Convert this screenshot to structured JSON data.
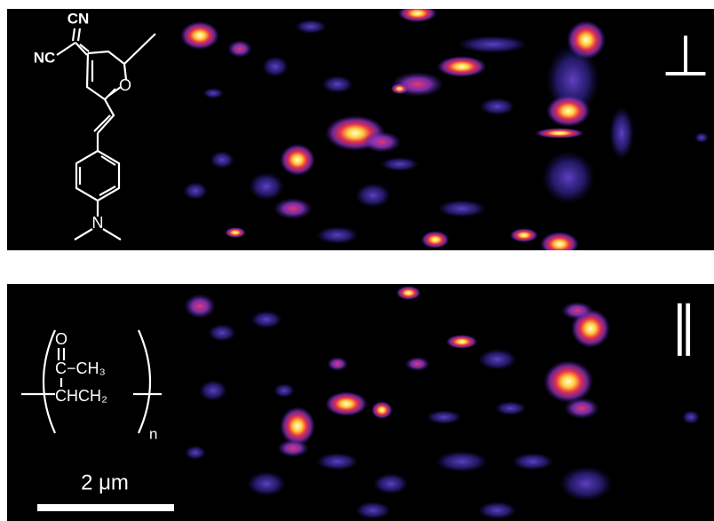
{
  "panels": [
    {
      "polarization": "⊥",
      "molecule": {
        "top_group": "CN",
        "left_group": "NC",
        "ring_atom": "O",
        "amine": "N"
      }
    },
    {
      "polarization": "∥",
      "polymer": {
        "carbonyl_o": "O",
        "side_chain": "C−CH₃",
        "backbone": "CHCH₂",
        "repeat": "n"
      }
    }
  ],
  "scale_bar": {
    "label": "2 μm"
  }
}
